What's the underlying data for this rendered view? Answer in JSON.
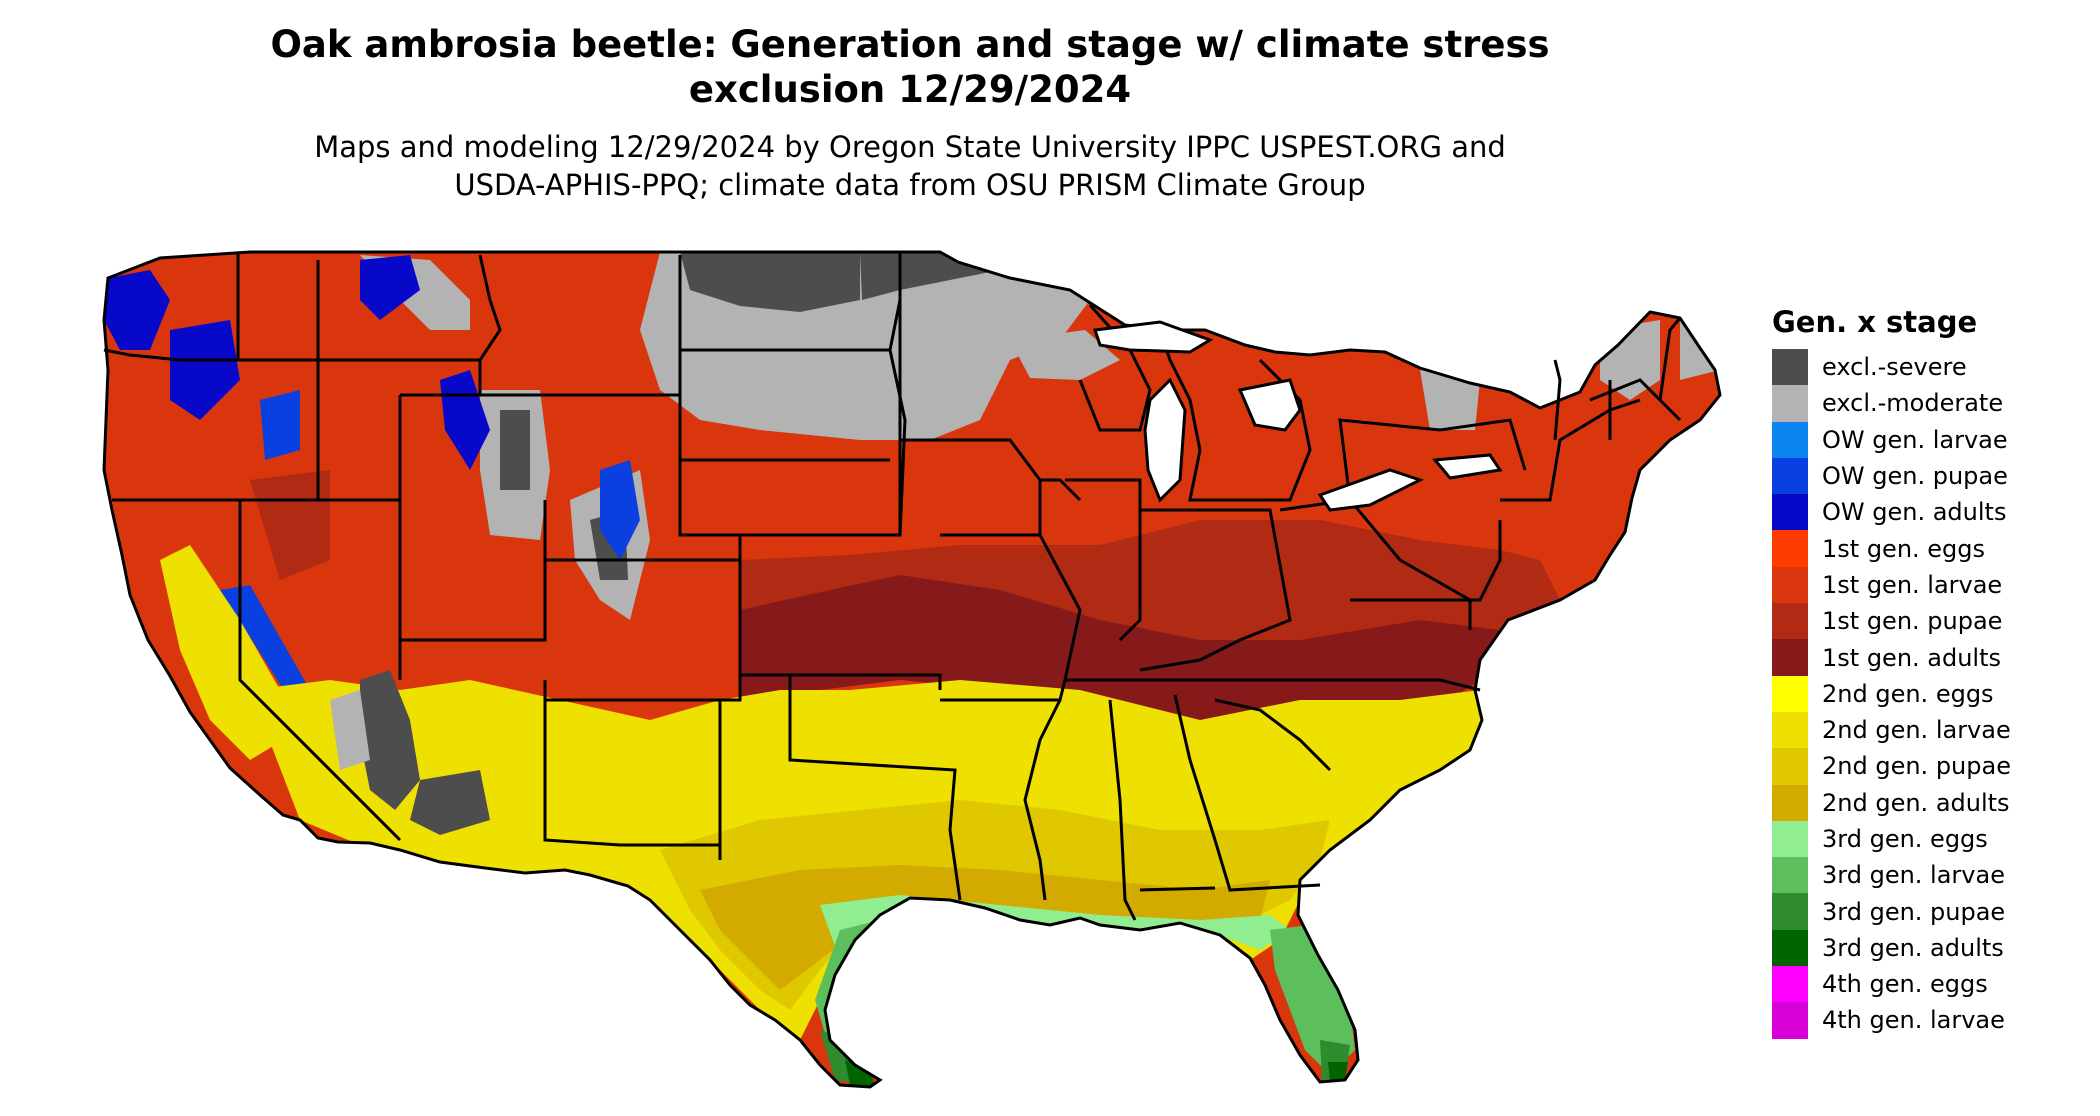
{
  "title": {
    "line1": "Oak ambrosia beetle: Generation and stage w/ climate stress",
    "line2": "exclusion 12/29/2024"
  },
  "subtitle": {
    "line1": "Maps and modeling 12/29/2024 by Oregon State University IPPC USPEST.ORG and",
    "line2": "USDA-APHIS-PPQ; climate data from OSU PRISM Climate Group"
  },
  "legend": {
    "title": "Gen. x stage",
    "items": [
      {
        "label": "excl.-severe",
        "color": "#4d4d4d"
      },
      {
        "label": "excl.-moderate",
        "color": "#b3b3b3"
      },
      {
        "label": "OW gen. larvae",
        "color": "#0b84f0"
      },
      {
        "label": "OW gen. pupae",
        "color": "#0b40e0"
      },
      {
        "label": "OW gen. adults",
        "color": "#0808c8"
      },
      {
        "label": "1st gen. eggs",
        "color": "#ff3c00"
      },
      {
        "label": "1st gen. larvae",
        "color": "#d9360e"
      },
      {
        "label": "1st gen. pupae",
        "color": "#b02a14"
      },
      {
        "label": "1st gen. adults",
        "color": "#861a1a"
      },
      {
        "label": "2nd gen. eggs",
        "color": "#ffff00"
      },
      {
        "label": "2nd gen. larvae",
        "color": "#eee000"
      },
      {
        "label": "2nd gen. pupae",
        "color": "#dfc800"
      },
      {
        "label": "2nd gen. adults",
        "color": "#d2aa00"
      },
      {
        "label": "3rd gen. eggs",
        "color": "#90ee90"
      },
      {
        "label": "3rd gen. larvae",
        "color": "#5cbf5c"
      },
      {
        "label": "3rd gen. pupae",
        "color": "#2e8b2e"
      },
      {
        "label": "3rd gen. adults",
        "color": "#006400"
      },
      {
        "label": "4th gen. eggs",
        "color": "#ff00ff"
      },
      {
        "label": "4th gen. larvae",
        "color": "#d800d8"
      }
    ]
  }
}
